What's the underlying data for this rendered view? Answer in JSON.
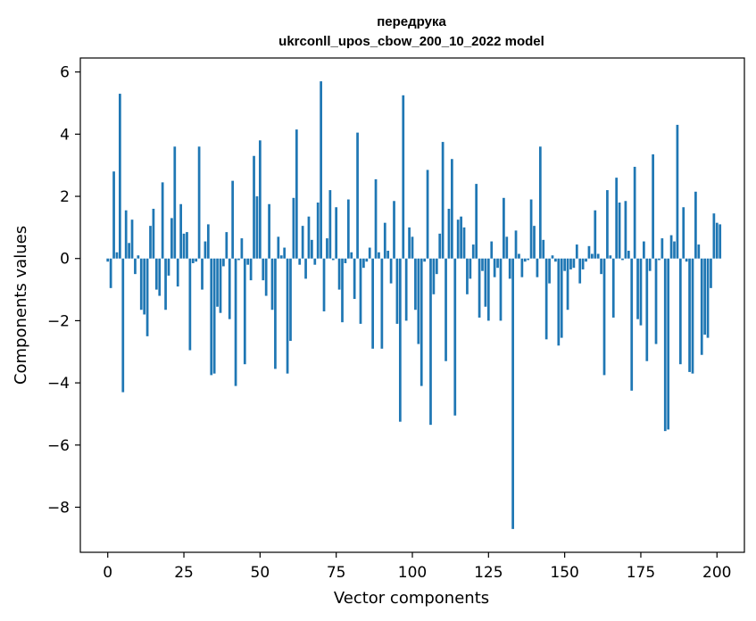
{
  "chart_data": {
    "type": "bar",
    "title": "передрука",
    "subtitle": "ukrconll_upos_cbow_200_10_2022 model",
    "xlabel": "Vector components",
    "ylabel": "Components values",
    "color": "#1f77b4",
    "xlim": [
      -9,
      209
    ],
    "ylim": [
      -9.45,
      6.45
    ],
    "xticks": [
      0,
      25,
      50,
      75,
      100,
      125,
      150,
      175,
      200
    ],
    "xtick_labels": [
      "0",
      "25",
      "50",
      "75",
      "100",
      "125",
      "150",
      "175",
      "200"
    ],
    "yticks": [
      6,
      4,
      2,
      0,
      -2,
      -4,
      -6,
      -8
    ],
    "ytick_labels": [
      "6",
      "4",
      "2",
      "0",
      "−2",
      "−4",
      "−6",
      "−8"
    ],
    "values": [
      -0.1,
      -0.95,
      2.8,
      0.2,
      5.3,
      -4.3,
      1.55,
      0.5,
      1.25,
      -0.5,
      0.1,
      -1.65,
      -1.8,
      -2.5,
      1.05,
      1.6,
      -1.0,
      -1.2,
      2.45,
      -1.65,
      -0.55,
      1.3,
      3.6,
      -0.9,
      1.75,
      0.8,
      0.85,
      -2.95,
      -0.15,
      -0.1,
      3.6,
      -1.0,
      0.55,
      1.1,
      -3.75,
      -3.7,
      -1.55,
      -1.75,
      -0.25,
      0.85,
      -1.95,
      2.5,
      -4.1,
      -0.05,
      0.65,
      -3.4,
      -0.2,
      -0.7,
      3.3,
      2.0,
      3.8,
      -0.7,
      -1.2,
      1.75,
      -1.65,
      -3.55,
      0.7,
      0.1,
      0.35,
      -3.7,
      -2.65,
      1.95,
      4.15,
      -0.2,
      1.05,
      -0.65,
      1.35,
      0.6,
      -0.2,
      1.8,
      5.7,
      -1.7,
      0.65,
      2.2,
      -0.05,
      1.65,
      -1.0,
      -2.05,
      -0.15,
      1.9,
      0.2,
      -1.3,
      4.05,
      -2.1,
      -0.3,
      -0.1,
      0.35,
      -2.9,
      2.55,
      0.2,
      -2.9,
      1.15,
      0.25,
      -0.8,
      1.85,
      -2.1,
      -5.25,
      5.25,
      -2.0,
      1.0,
      0.7,
      -1.65,
      -2.75,
      -4.1,
      -0.1,
      2.85,
      -5.35,
      -1.15,
      -0.5,
      0.8,
      3.75,
      -3.3,
      1.6,
      3.2,
      -5.05,
      1.25,
      1.35,
      1.0,
      -1.15,
      -0.65,
      0.45,
      2.4,
      -1.9,
      -0.4,
      -1.55,
      -2.0,
      0.55,
      -0.6,
      -0.3,
      -2.0,
      1.95,
      0.7,
      -0.65,
      -8.7,
      0.9,
      0.15,
      -0.6,
      -0.1,
      -0.05,
      1.9,
      1.05,
      -0.6,
      3.6,
      0.6,
      -2.6,
      -0.8,
      0.1,
      -0.1,
      -2.8,
      -2.55,
      -0.4,
      -1.65,
      -0.35,
      -0.3,
      0.45,
      -0.8,
      -0.35,
      -0.1,
      0.4,
      0.15,
      1.55,
      0.15,
      -0.5,
      -3.75,
      2.2,
      0.1,
      -1.9,
      2.6,
      1.8,
      -0.05,
      1.85,
      0.25,
      -4.25,
      2.95,
      -1.95,
      -2.15,
      0.55,
      -3.3,
      -0.4,
      3.35,
      -2.75,
      -0.05,
      0.65,
      -5.55,
      -5.5,
      0.75,
      0.55,
      4.3,
      -3.4,
      1.65,
      -0.1,
      -3.65,
      -3.7,
      2.15,
      0.45,
      -3.1,
      -2.45,
      -2.55,
      -0.95,
      1.45,
      1.15,
      1.1
    ]
  }
}
